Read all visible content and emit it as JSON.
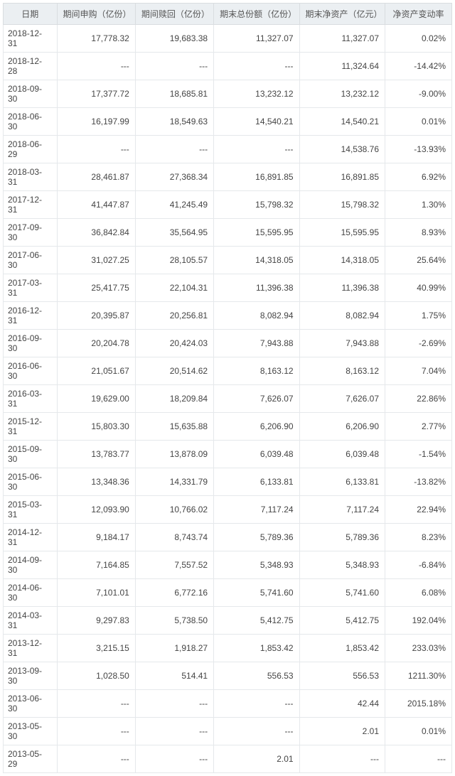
{
  "headers": {
    "date": "日期",
    "subscription": "期间申购（亿份）",
    "redemption": "期间赎回（亿份）",
    "total_shares": "期末总份额（亿份）",
    "net_asset": "期末净资产（亿元）",
    "change_rate": "净资产变动率"
  },
  "rows": [
    {
      "date": "2018-12-31",
      "sub": "17,778.32",
      "red": "19,683.38",
      "tot": "11,327.07",
      "nav": "11,327.07",
      "chg": "0.02%"
    },
    {
      "date": "2018-12-28",
      "sub": "---",
      "red": "---",
      "tot": "---",
      "nav": "11,324.64",
      "chg": "-14.42%"
    },
    {
      "date": "2018-09-30",
      "sub": "17,377.72",
      "red": "18,685.81",
      "tot": "13,232.12",
      "nav": "13,232.12",
      "chg": "-9.00%"
    },
    {
      "date": "2018-06-30",
      "sub": "16,197.99",
      "red": "18,549.63",
      "tot": "14,540.21",
      "nav": "14,540.21",
      "chg": "0.01%"
    },
    {
      "date": "2018-06-29",
      "sub": "---",
      "red": "---",
      "tot": "---",
      "nav": "14,538.76",
      "chg": "-13.93%"
    },
    {
      "date": "2018-03-31",
      "sub": "28,461.87",
      "red": "27,368.34",
      "tot": "16,891.85",
      "nav": "16,891.85",
      "chg": "6.92%"
    },
    {
      "date": "2017-12-31",
      "sub": "41,447.87",
      "red": "41,245.49",
      "tot": "15,798.32",
      "nav": "15,798.32",
      "chg": "1.30%"
    },
    {
      "date": "2017-09-30",
      "sub": "36,842.84",
      "red": "35,564.95",
      "tot": "15,595.95",
      "nav": "15,595.95",
      "chg": "8.93%"
    },
    {
      "date": "2017-06-30",
      "sub": "31,027.25",
      "red": "28,105.57",
      "tot": "14,318.05",
      "nav": "14,318.05",
      "chg": "25.64%"
    },
    {
      "date": "2017-03-31",
      "sub": "25,417.75",
      "red": "22,104.31",
      "tot": "11,396.38",
      "nav": "11,396.38",
      "chg": "40.99%"
    },
    {
      "date": "2016-12-31",
      "sub": "20,395.87",
      "red": "20,256.81",
      "tot": "8,082.94",
      "nav": "8,082.94",
      "chg": "1.75%"
    },
    {
      "date": "2016-09-30",
      "sub": "20,204.78",
      "red": "20,424.03",
      "tot": "7,943.88",
      "nav": "7,943.88",
      "chg": "-2.69%"
    },
    {
      "date": "2016-06-30",
      "sub": "21,051.67",
      "red": "20,514.62",
      "tot": "8,163.12",
      "nav": "8,163.12",
      "chg": "7.04%"
    },
    {
      "date": "2016-03-31",
      "sub": "19,629.00",
      "red": "18,209.84",
      "tot": "7,626.07",
      "nav": "7,626.07",
      "chg": "22.86%"
    },
    {
      "date": "2015-12-31",
      "sub": "15,803.30",
      "red": "15,635.88",
      "tot": "6,206.90",
      "nav": "6,206.90",
      "chg": "2.77%"
    },
    {
      "date": "2015-09-30",
      "sub": "13,783.77",
      "red": "13,878.09",
      "tot": "6,039.48",
      "nav": "6,039.48",
      "chg": "-1.54%"
    },
    {
      "date": "2015-06-30",
      "sub": "13,348.36",
      "red": "14,331.79",
      "tot": "6,133.81",
      "nav": "6,133.81",
      "chg": "-13.82%"
    },
    {
      "date": "2015-03-31",
      "sub": "12,093.90",
      "red": "10,766.02",
      "tot": "7,117.24",
      "nav": "7,117.24",
      "chg": "22.94%"
    },
    {
      "date": "2014-12-31",
      "sub": "9,184.17",
      "red": "8,743.74",
      "tot": "5,789.36",
      "nav": "5,789.36",
      "chg": "8.23%"
    },
    {
      "date": "2014-09-30",
      "sub": "7,164.85",
      "red": "7,557.52",
      "tot": "5,348.93",
      "nav": "5,348.93",
      "chg": "-6.84%"
    },
    {
      "date": "2014-06-30",
      "sub": "7,101.01",
      "red": "6,772.16",
      "tot": "5,741.60",
      "nav": "5,741.60",
      "chg": "6.08%"
    },
    {
      "date": "2014-03-31",
      "sub": "9,297.83",
      "red": "5,738.50",
      "tot": "5,412.75",
      "nav": "5,412.75",
      "chg": "192.04%"
    },
    {
      "date": "2013-12-31",
      "sub": "3,215.15",
      "red": "1,918.27",
      "tot": "1,853.42",
      "nav": "1,853.42",
      "chg": "233.03%"
    },
    {
      "date": "2013-09-30",
      "sub": "1,028.50",
      "red": "514.41",
      "tot": "556.53",
      "nav": "556.53",
      "chg": "1211.30%"
    },
    {
      "date": "2013-06-30",
      "sub": "---",
      "red": "---",
      "tot": "---",
      "nav": "42.44",
      "chg": "2015.18%"
    },
    {
      "date": "2013-05-30",
      "sub": "---",
      "red": "---",
      "tot": "---",
      "nav": "2.01",
      "chg": "0.01%"
    },
    {
      "date": "2013-05-29",
      "sub": "---",
      "red": "---",
      "tot": "2.01",
      "nav": "---",
      "chg": "---"
    }
  ]
}
